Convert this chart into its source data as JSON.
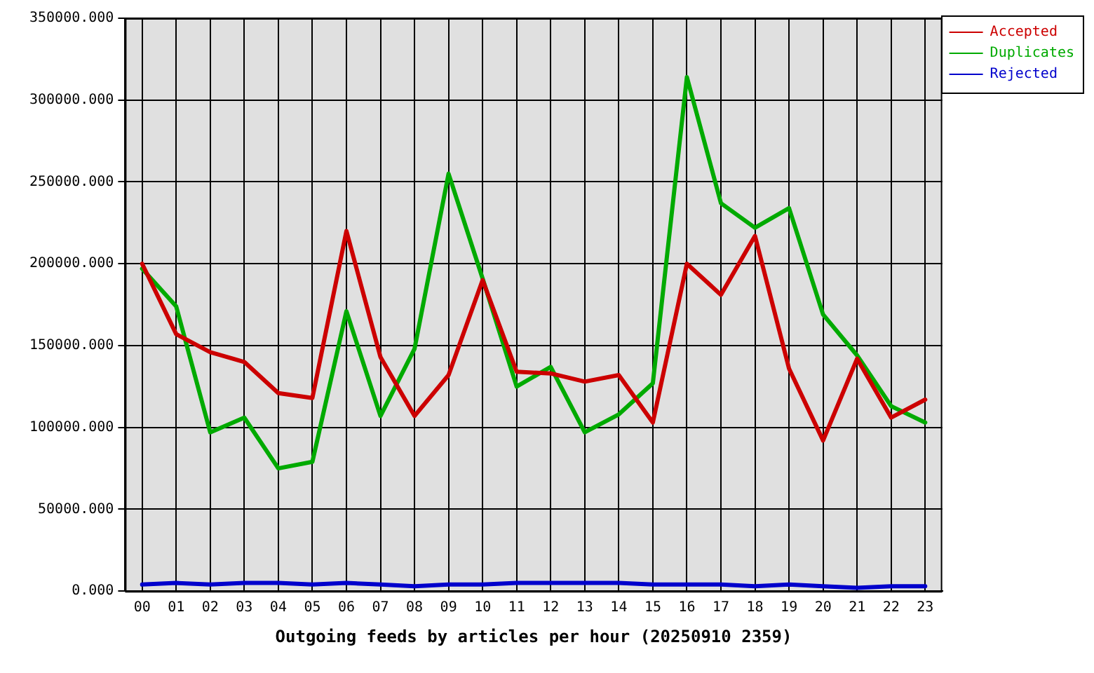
{
  "chart_data": {
    "type": "line",
    "title": "Outgoing feeds by articles per hour (20250910 2359)",
    "categories": [
      "00",
      "01",
      "02",
      "03",
      "04",
      "05",
      "06",
      "07",
      "08",
      "09",
      "10",
      "11",
      "12",
      "13",
      "14",
      "15",
      "16",
      "17",
      "18",
      "19",
      "20",
      "21",
      "22",
      "23"
    ],
    "series": [
      {
        "name": "Accepted",
        "color": "#cc0000",
        "values": [
          200000,
          157000,
          146000,
          140000,
          121000,
          118000,
          220000,
          143000,
          107000,
          132000,
          190000,
          134000,
          133000,
          128000,
          132000,
          103000,
          200000,
          181000,
          217000,
          136000,
          92000,
          142000,
          106000,
          117000
        ]
      },
      {
        "name": "Duplicates",
        "color": "#00aa00",
        "values": [
          197000,
          174000,
          97000,
          106000,
          75000,
          79000,
          171000,
          107000,
          148000,
          255000,
          191000,
          125000,
          137000,
          97000,
          108000,
          127000,
          314000,
          237000,
          222000,
          234000,
          169000,
          144000,
          113000,
          103000
        ]
      },
      {
        "name": "Rejected",
        "color": "#0000cc",
        "values": [
          4000,
          5000,
          4000,
          5000,
          5000,
          4000,
          5000,
          4000,
          3000,
          4000,
          4000,
          5000,
          5000,
          5000,
          5000,
          4000,
          4000,
          4000,
          3000,
          4000,
          3000,
          2000,
          3000,
          3000
        ]
      }
    ],
    "ylim": [
      0,
      350000
    ],
    "yticks": [
      {
        "value": 0,
        "label": "0.000"
      },
      {
        "value": 50000,
        "label": "50000.000"
      },
      {
        "value": 100000,
        "label": "100000.000"
      },
      {
        "value": 150000,
        "label": "150000.000"
      },
      {
        "value": 200000,
        "label": "200000.000"
      },
      {
        "value": 250000,
        "label": "250000.000"
      },
      {
        "value": 300000,
        "label": "300000.000"
      },
      {
        "value": 350000,
        "label": "350000.000"
      }
    ],
    "grid": true,
    "legend": "top right",
    "line_style": "solid"
  }
}
